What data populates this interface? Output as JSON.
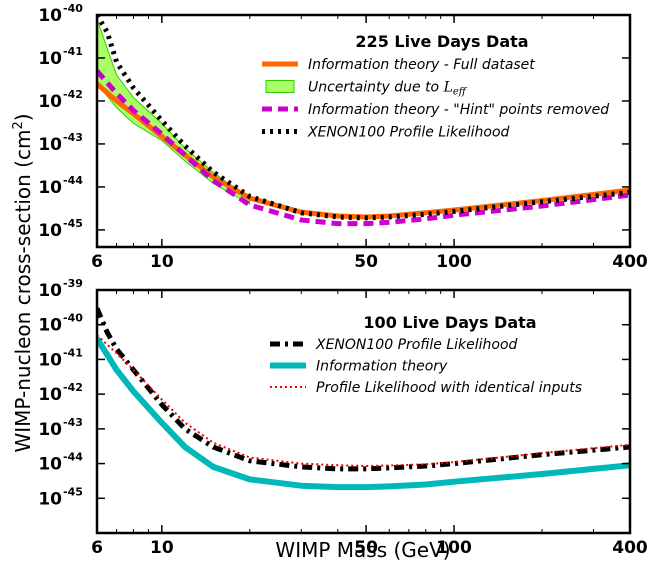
{
  "labels": {
    "ylabel": "WIMP-nucleon cross-section (cm",
    "ylabel_exp": "2",
    "ylabel_close": ")",
    "xlabel": "WIMP Mass (GeV)"
  },
  "colors": {
    "orange": "#ff6600",
    "green_fill": "#aaff66",
    "green_edge": "#33cc00",
    "magenta": "#cc00cc",
    "black": "#000000",
    "cyan": "#00b8b8",
    "red": "#ee0000"
  },
  "chart_data": [
    {
      "type": "line",
      "title": "225 Live Days Data",
      "xscale": "log",
      "yscale": "log",
      "xlim": [
        6,
        400
      ],
      "ylim": [
        4e-46,
        1e-40
      ],
      "xticks": [
        "6",
        "10",
        "50",
        "100",
        "400"
      ],
      "yticks": [
        {
          "base": "10",
          "exp": "-45"
        },
        {
          "base": "10",
          "exp": "-44"
        },
        {
          "base": "10",
          "exp": "-43"
        },
        {
          "base": "10",
          "exp": "-42"
        },
        {
          "base": "10",
          "exp": "-41"
        },
        {
          "base": "10",
          "exp": "-40"
        }
      ],
      "legend_position": "top-right",
      "band": {
        "name": "Uncertainty due to ",
        "name_symbol": "L",
        "name_sub": "eff",
        "x": [
          6,
          7,
          8,
          10,
          12,
          15,
          20
        ],
        "lower": [
          2.5e-42,
          7e-43,
          3e-43,
          1.2e-43,
          4e-44,
          1.2e-44,
          4e-45
        ],
        "upper": [
          8e-41,
          4e-42,
          1.2e-42,
          3e-43,
          8e-44,
          2.2e-44,
          5e-45
        ]
      },
      "series": [
        {
          "name": "Information theory - Full dataset",
          "style": "solid-orange",
          "x": [
            6,
            7,
            8,
            10,
            12,
            15,
            20,
            30,
            40,
            50,
            60,
            80,
            100,
            200,
            400
          ],
          "y": [
            2.5e-42,
            1e-42,
            5e-43,
            1.5e-43,
            5.5e-44,
            1.7e-44,
            5.5e-45,
            2.6e-45,
            2.1e-45,
            2e-45,
            2.1e-45,
            2.5e-45,
            2.9e-45,
            4.8e-45,
            8.5e-45
          ]
        },
        {
          "name": "Information theory - \"Hint\" points removed",
          "style": "dashed-magenta",
          "x": [
            6,
            7,
            8,
            10,
            12,
            15,
            20,
            30,
            40,
            50,
            60,
            80,
            100,
            200,
            400
          ],
          "y": [
            5e-42,
            1.5e-42,
            6e-43,
            1.7e-43,
            5.5e-44,
            1.4e-44,
            3.8e-45,
            1.7e-45,
            1.4e-45,
            1.4e-45,
            1.5e-45,
            1.8e-45,
            2.2e-45,
            3.6e-45,
            6.5e-45
          ]
        },
        {
          "name": "XENON100 Profile Likelihood",
          "style": "dotted-black",
          "x": [
            6,
            6.5,
            7,
            8,
            10,
            12,
            15,
            20,
            30,
            40,
            50,
            60,
            80,
            100,
            200,
            400
          ],
          "y": [
            1e-40,
            4e-41,
            8e-42,
            2e-42,
            3.5e-43,
            9e-44,
            2.2e-44,
            6e-45,
            2.5e-45,
            2e-45,
            1.9e-45,
            2e-45,
            2.3e-45,
            2.7e-45,
            4.5e-45,
            7.5e-45
          ]
        }
      ]
    },
    {
      "type": "line",
      "title": "100 Live Days Data",
      "xscale": "log",
      "yscale": "log",
      "xlim": [
        6,
        400
      ],
      "ylim": [
        1e-46,
        1e-39
      ],
      "xticks": [
        "6",
        "10",
        "50",
        "100",
        "400"
      ],
      "yticks": [
        {
          "base": "10",
          "exp": "-45"
        },
        {
          "base": "10",
          "exp": "-44"
        },
        {
          "base": "10",
          "exp": "-43"
        },
        {
          "base": "10",
          "exp": "-42"
        },
        {
          "base": "10",
          "exp": "-41"
        },
        {
          "base": "10",
          "exp": "-40"
        },
        {
          "base": "10",
          "exp": "-39"
        }
      ],
      "legend_position": "top-right",
      "series": [
        {
          "name": "XENON100 Profile Likelihood",
          "style": "dashdot-black",
          "x": [
            6,
            6.5,
            7,
            8,
            10,
            12,
            15,
            20,
            30,
            40,
            50,
            60,
            80,
            100,
            200,
            400
          ],
          "y": [
            3e-40,
            6e-41,
            2e-41,
            5e-42,
            5e-43,
            1e-43,
            3e-44,
            1.2e-44,
            8e-45,
            7e-45,
            7e-45,
            7.5e-45,
            8.5e-45,
            1e-44,
            1.8e-44,
            3e-44
          ]
        },
        {
          "name": "Information theory",
          "style": "solid-cyan",
          "x": [
            6,
            7,
            8,
            10,
            12,
            15,
            20,
            30,
            40,
            50,
            60,
            80,
            100,
            200,
            400
          ],
          "y": [
            4e-41,
            5e-42,
            1.2e-42,
            1.5e-43,
            3e-44,
            8e-45,
            3.5e-45,
            2.3e-45,
            2.1e-45,
            2.1e-45,
            2.2e-45,
            2.5e-45,
            3e-45,
            5e-45,
            9e-45
          ]
        },
        {
          "name": "Profile Likelihood with identical inputs",
          "style": "dotted-red",
          "x": [
            6,
            7,
            8,
            10,
            12,
            15,
            20,
            30,
            40,
            50,
            60,
            80,
            100,
            200,
            400
          ],
          "y": [
            5e-41,
            1.5e-41,
            5e-42,
            7e-43,
            1.5e-43,
            4e-44,
            1.5e-44,
            1e-44,
            9e-45,
            8.5e-45,
            8.8e-45,
            9.5e-45,
            1.1e-44,
            2e-44,
            3.5e-44
          ]
        }
      ]
    }
  ]
}
